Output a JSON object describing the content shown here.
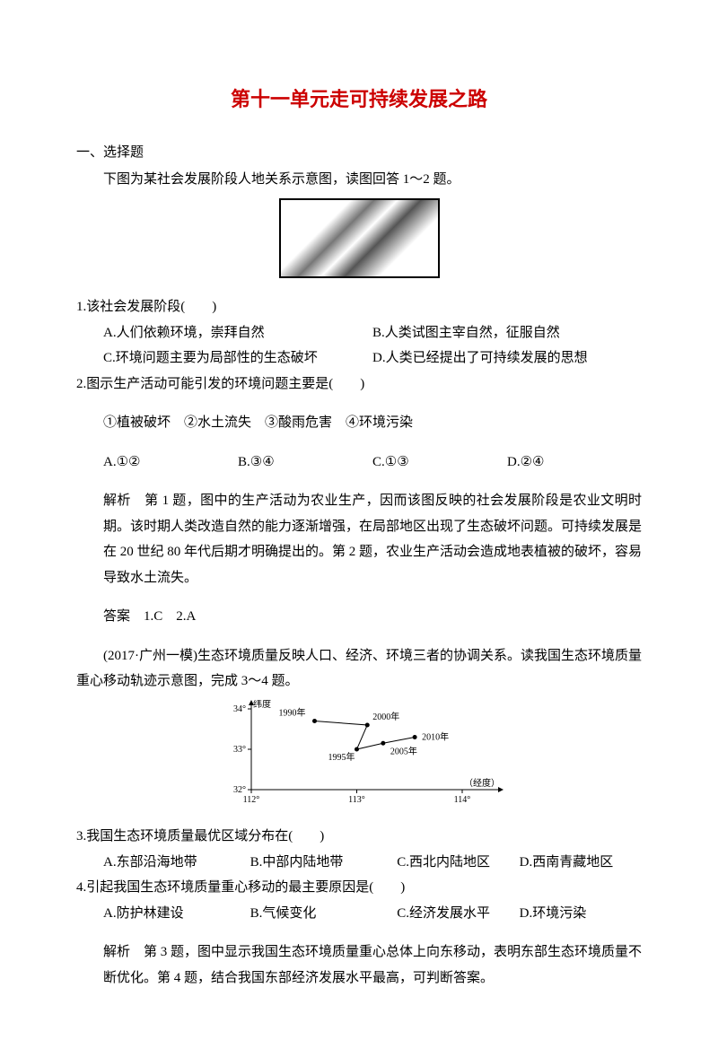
{
  "title": "第十一单元走可持续发展之路",
  "section1": "一、选择题",
  "intro1": "下图为某社会发展阶段人地关系示意图，读图回答 1～2 题。",
  "fig1_name": "farming-illustration",
  "q1": {
    "stem": "1.该社会发展阶段(　　)",
    "A": "A.人们依赖环境，崇拜自然",
    "B": "B.人类试图主宰自然，征服自然",
    "C": "C.环境问题主要为局部性的生态破坏",
    "D": "D.人类已经提出了可持续发展的思想"
  },
  "q2": {
    "stem": "2.图示生产活动可能引发的环境问题主要是(　　)",
    "line": "①植被破坏　②水土流失　③酸雨危害　④环境污染",
    "A": "A.①②",
    "B": "B.③④",
    "C": "C.①③",
    "D": "D.②④"
  },
  "explain12": "解析　第 1 题，图中的生产活动为农业生产，因而该图反映的社会发展阶段是农业文明时期。该时期人类改造自然的能力逐渐增强，在局部地区出现了生态破坏问题。可持续发展是在 20 世纪 80 年代后期才明确提出的。第 2 题，农业生产活动会造成地表植被的破坏，容易导致水土流失。",
  "answer12": "答案　1.C　2.A",
  "intro2": "(2017·广州一模)生态环境质量反映人口、经济、环境三者的协调关系。读我国生态环境质量重心移动轨迹示意图，完成 3～4 题。",
  "chart": {
    "type": "line",
    "xaxis_label": "（经度）",
    "yaxis_label": "纬度",
    "xticks": [
      "112°",
      "113°",
      "114°"
    ],
    "yticks": [
      "32°",
      "33°",
      "34°"
    ],
    "points": [
      {
        "label": "1990年",
        "lon": 112.6,
        "lat": 33.7
      },
      {
        "label": "2000年",
        "lon": 113.1,
        "lat": 33.6
      },
      {
        "label": "1995年",
        "lon": 113.0,
        "lat": 33.0
      },
      {
        "label": "2005年",
        "lon": 113.25,
        "lat": 33.15
      },
      {
        "label": "2010年",
        "lon": 113.55,
        "lat": 33.3
      }
    ],
    "path_order": [
      0,
      1,
      2,
      3,
      4
    ],
    "stroke": "#000000",
    "marker": "circle",
    "marker_fill": "#000000",
    "bg": "#ffffff",
    "font_size": 10
  },
  "q3": {
    "stem": "3.我国生态环境质量最优区域分布在(　　)",
    "A": "A.东部沿海地带",
    "B": "B.中部内陆地带",
    "C": "C.西北内陆地区",
    "D": "D.西南青藏地区"
  },
  "q4": {
    "stem": "4.引起我国生态环境质量重心移动的最主要原因是(　　)",
    "A": "A.防护林建设",
    "B": "B.气候变化",
    "C": "C.经济发展水平",
    "D": "D.环境污染"
  },
  "explain34": "解析　第 3 题，图中显示我国生态环境质量重心总体上向东移动，表明东部生态环境质量不断优化。第 4 题，结合我国东部经济发展水平最高，可判断答案。"
}
